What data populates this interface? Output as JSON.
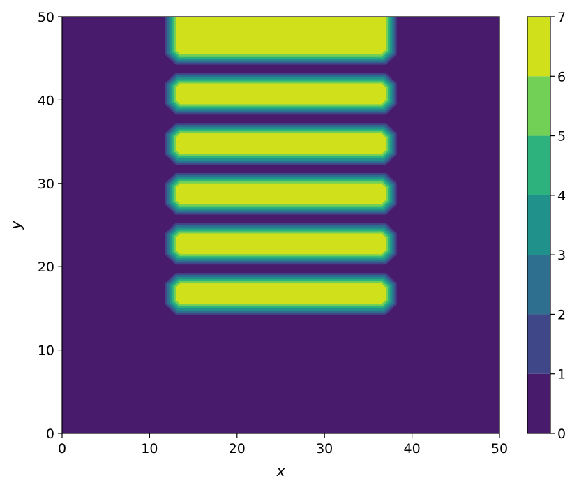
{
  "chart_data": {
    "type": "heatmap",
    "subtype": "filled-contour",
    "title": "",
    "xlabel": "x",
    "ylabel": "y",
    "xlim": [
      0,
      50
    ],
    "ylim": [
      0,
      50
    ],
    "xticks": [
      "0",
      "10",
      "20",
      "30",
      "40",
      "50"
    ],
    "yticks": [
      "0",
      "10",
      "20",
      "30",
      "40",
      "50"
    ],
    "grid": false,
    "background_value": 0,
    "bars": [
      {
        "x_start": 13,
        "x_end": 37,
        "y_start": 45.5,
        "y_end": 50,
        "value": 7,
        "open_top": true
      },
      {
        "x_start": 13,
        "x_end": 37,
        "y_start": 39.5,
        "y_end": 42,
        "value": 7
      },
      {
        "x_start": 13,
        "x_end": 37,
        "y_start": 33.5,
        "y_end": 36,
        "value": 7
      },
      {
        "x_start": 13,
        "x_end": 37,
        "y_start": 27.5,
        "y_end": 30,
        "value": 7
      },
      {
        "x_start": 13,
        "x_end": 37,
        "y_start": 21.5,
        "y_end": 24,
        "value": 7
      },
      {
        "x_start": 13,
        "x_end": 37,
        "y_start": 15.5,
        "y_end": 18,
        "value": 7
      }
    ],
    "colorbar": {
      "min": 0,
      "max": 7,
      "ticks": [
        "0",
        "1",
        "2",
        "3",
        "4",
        "5",
        "6",
        "7"
      ],
      "levels": [
        {
          "from": 0,
          "to": 1,
          "color": "#481b6d"
        },
        {
          "from": 1,
          "to": 2,
          "color": "#3f4788"
        },
        {
          "from": 2,
          "to": 3,
          "color": "#2e6e8e"
        },
        {
          "from": 3,
          "to": 4,
          "color": "#21918c"
        },
        {
          "from": 4,
          "to": 5,
          "color": "#2db27d"
        },
        {
          "from": 5,
          "to": 6,
          "color": "#73d056"
        },
        {
          "from": 6,
          "to": 7,
          "color": "#d0e11c"
        }
      ]
    }
  }
}
